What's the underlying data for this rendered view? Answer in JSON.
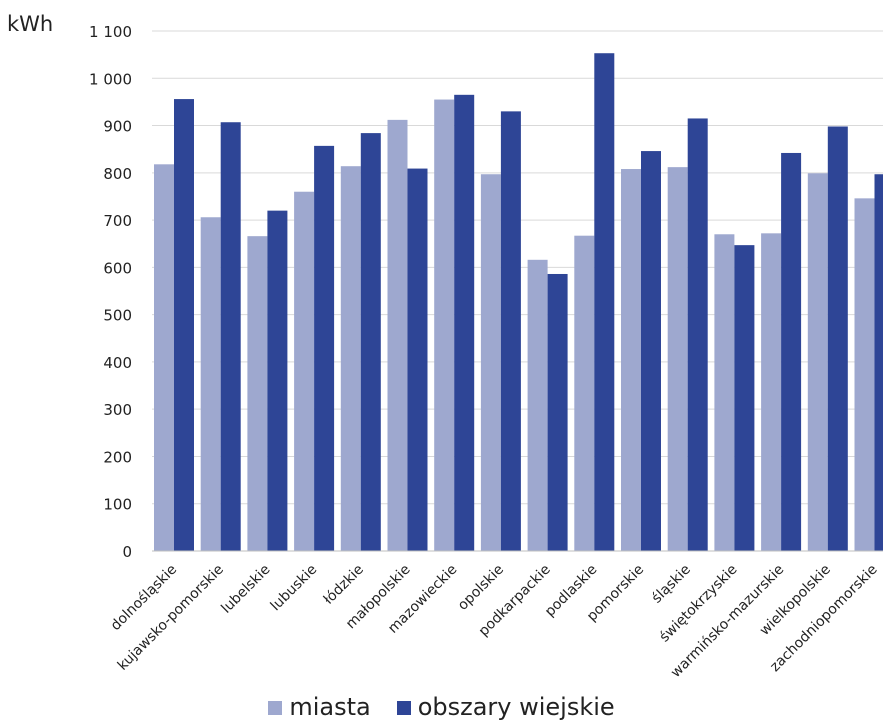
{
  "chart_data": {
    "type": "bar",
    "title": "",
    "xlabel": "",
    "ylabel": "kWh",
    "ylim": [
      0,
      1100
    ],
    "yticks": [
      0,
      100,
      200,
      300,
      400,
      500,
      600,
      700,
      800,
      900,
      1000,
      1100
    ],
    "ytick_labels": [
      "0",
      "100",
      "200",
      "300",
      "400",
      "500",
      "600",
      "700",
      "800",
      "900",
      "1 000",
      "1 100"
    ],
    "grid": true,
    "legend_position": "bottom",
    "categories": [
      "dolnośląskie",
      "kujawsko-pomorskie",
      "lubelskie",
      "lubuskie",
      "łódzkie",
      "małopolskie",
      "mazowieckie",
      "opolskie",
      "podkarpackie",
      "podlaskie",
      "pomorskie",
      "śląskie",
      "świętokrzyskie",
      "warmińsko-mazurskie",
      "wielkopolskie",
      "zachodniopomorskie"
    ],
    "series": [
      {
        "name": "miasta",
        "color": "#9ea8cf",
        "values": [
          818,
          706,
          666,
          760,
          814,
          912,
          955,
          797,
          616,
          667,
          808,
          812,
          670,
          672,
          799,
          746
        ]
      },
      {
        "name": "obszary wiejskie",
        "color": "#2e4596",
        "values": [
          956,
          907,
          720,
          857,
          884,
          809,
          965,
          930,
          586,
          1053,
          846,
          915,
          647,
          842,
          898,
          797
        ]
      }
    ]
  }
}
